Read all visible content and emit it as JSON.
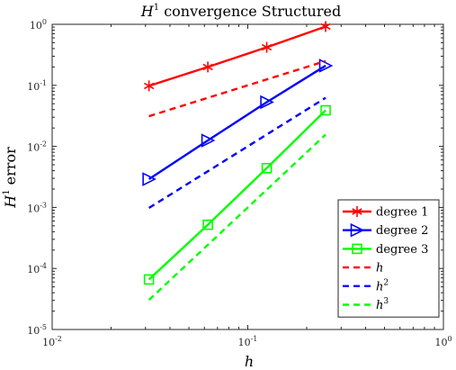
{
  "chart_data": {
    "type": "line",
    "title": "H¹ convergence Structured",
    "title_parts": {
      "base": "H",
      "sup": "1",
      "rest": " convergence Structured"
    },
    "xlabel": "h",
    "ylabel": "H¹ error",
    "ylabel_parts": {
      "base": "H",
      "sup": "1",
      "rest": " error"
    },
    "x_scale": "log",
    "y_scale": "log",
    "xlim": [
      0.01,
      1
    ],
    "ylim": [
      1e-05,
      1
    ],
    "x_ticks": [
      {
        "value": 0.01,
        "base": "10",
        "exp": "-2"
      },
      {
        "value": 0.1,
        "base": "10",
        "exp": "-1"
      },
      {
        "value": 1,
        "base": "10",
        "exp": "0"
      }
    ],
    "y_ticks": [
      {
        "value": 1e-05,
        "base": "10",
        "exp": "-5"
      },
      {
        "value": 0.0001,
        "base": "10",
        "exp": "-4"
      },
      {
        "value": 0.001,
        "base": "10",
        "exp": "-3"
      },
      {
        "value": 0.01,
        "base": "10",
        "exp": "-2"
      },
      {
        "value": 0.1,
        "base": "10",
        "exp": "-1"
      },
      {
        "value": 1,
        "base": "10",
        "exp": "0"
      }
    ],
    "grid": false,
    "legend_position": "bottom-right",
    "series": [
      {
        "name": "degree 1",
        "color": "#ff0000",
        "style": "solid",
        "marker": "asterisk",
        "x": [
          0.03125,
          0.0625,
          0.125,
          0.25
        ],
        "y": [
          0.098,
          0.2,
          0.42,
          0.92
        ]
      },
      {
        "name": "degree 2",
        "color": "#0000ff",
        "style": "solid",
        "marker": "triangle-right",
        "x": [
          0.03125,
          0.0625,
          0.125,
          0.25
        ],
        "y": [
          0.0029,
          0.0125,
          0.053,
          0.21
        ]
      },
      {
        "name": "degree 3",
        "color": "#00ff00",
        "style": "solid",
        "marker": "square",
        "x": [
          0.03125,
          0.0625,
          0.125,
          0.25
        ],
        "y": [
          6.6e-05,
          0.00052,
          0.0044,
          0.039
        ]
      },
      {
        "name": "h",
        "name_base": "h",
        "name_sup": "",
        "color": "#ff0000",
        "style": "dashed",
        "marker": "none",
        "x": [
          0.03125,
          0.25
        ],
        "y": [
          0.03125,
          0.25
        ]
      },
      {
        "name": "h²",
        "name_base": "h",
        "name_sup": "2",
        "color": "#0000ff",
        "style": "dashed",
        "marker": "none",
        "x": [
          0.03125,
          0.25
        ],
        "y": [
          0.00098,
          0.0625
        ]
      },
      {
        "name": "h³",
        "name_base": "h",
        "name_sup": "3",
        "color": "#00ff00",
        "style": "dashed",
        "marker": "none",
        "x": [
          0.03125,
          0.25
        ],
        "y": [
          3.05e-05,
          0.0156
        ]
      }
    ]
  }
}
